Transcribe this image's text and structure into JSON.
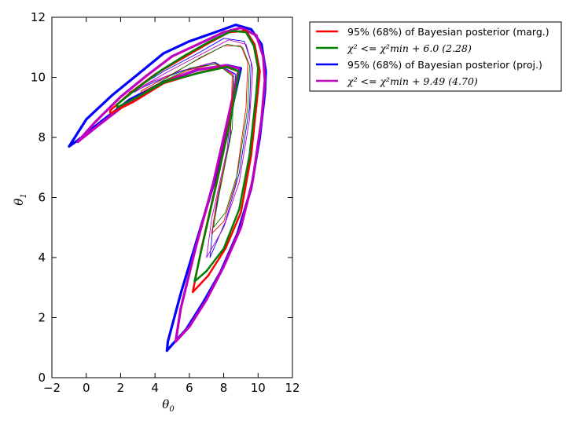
{
  "chart_data": {
    "type": "contour",
    "xlabel": "θ",
    "xlabel_sub": "0",
    "ylabel": "θ",
    "ylabel_sub": "1",
    "xlim": [
      -2,
      12
    ],
    "ylim": [
      0,
      12
    ],
    "xticks": [
      -2,
      0,
      2,
      4,
      6,
      8,
      10,
      12
    ],
    "yticks": [
      0,
      2,
      4,
      6,
      8,
      10,
      12
    ],
    "xtick_labels": [
      "−2",
      "0",
      "2",
      "4",
      "6",
      "8",
      "10",
      "12"
    ],
    "ytick_labels": [
      "0",
      "2",
      "4",
      "6",
      "8",
      "10",
      "12"
    ],
    "grid": false,
    "legend_position": "outside-right-top",
    "legend": [
      {
        "label": "95% (68%) of Bayesian posterior (marg.)",
        "color": "#ff0000"
      },
      {
        "label": "χ² <= χ²min + 6.0 (2.28)",
        "color": "#007f00"
      },
      {
        "label": "95% (68%) of Bayesian posterior (proj.)",
        "color": "#0000ff"
      },
      {
        "label": "χ² <= χ²min + 9.49 (4.70)",
        "color": "#bf00bf"
      }
    ],
    "series": [
      {
        "name": "95% (68%) of Bayesian posterior (marg.)",
        "color": "#ff0000",
        "outer": [
          [
            1.4,
            8.9
          ],
          [
            2.6,
            9.5
          ],
          [
            4,
            10.1
          ],
          [
            5.5,
            10.6
          ],
          [
            7,
            11.1
          ],
          [
            8.3,
            11.5
          ],
          [
            9.3,
            11.55
          ],
          [
            9.8,
            11.1
          ],
          [
            10.1,
            10.2
          ],
          [
            10.0,
            9.6
          ],
          [
            9.6,
            7.4
          ],
          [
            9.0,
            5.5
          ],
          [
            8.1,
            4.3
          ],
          [
            7.1,
            3.4
          ],
          [
            6.2,
            2.85
          ],
          [
            6.7,
            4.3
          ],
          [
            7.5,
            6.3
          ],
          [
            8.3,
            8.4
          ],
          [
            8.9,
            10.2
          ],
          [
            8.1,
            10.35
          ],
          [
            6.5,
            10.15
          ],
          [
            4.5,
            9.8
          ],
          [
            2.8,
            9.2
          ],
          [
            1.4,
            8.8
          ]
        ],
        "inner": [
          [
            3.2,
            9.55
          ],
          [
            4.8,
            10.05
          ],
          [
            6.5,
            10.6
          ],
          [
            8.0,
            11.05
          ],
          [
            9.0,
            11.05
          ],
          [
            9.4,
            10.5
          ],
          [
            9.3,
            9.0
          ],
          [
            8.7,
            6.5
          ],
          [
            8.0,
            5.2
          ],
          [
            7.3,
            4.8
          ],
          [
            7.6,
            5.9
          ],
          [
            8.4,
            8.0
          ],
          [
            8.5,
            10.1
          ],
          [
            7.5,
            10.45
          ],
          [
            6.0,
            10.25
          ],
          [
            4.5,
            9.85
          ],
          [
            3.2,
            9.5
          ]
        ]
      },
      {
        "name": "χ² <= χ²min + 6.0 (2.28)",
        "color": "#007f00",
        "outer": [
          [
            1.8,
            9.1
          ],
          [
            3,
            9.65
          ],
          [
            4.4,
            10.25
          ],
          [
            5.8,
            10.75
          ],
          [
            7.2,
            11.2
          ],
          [
            8.5,
            11.55
          ],
          [
            9.3,
            11.5
          ],
          [
            9.75,
            11.05
          ],
          [
            10.0,
            10.3
          ],
          [
            9.9,
            9.5
          ],
          [
            9.5,
            7.4
          ],
          [
            8.9,
            5.6
          ],
          [
            8.0,
            4.3
          ],
          [
            7.0,
            3.55
          ],
          [
            6.3,
            3.2
          ],
          [
            6.8,
            4.5
          ],
          [
            7.6,
            6.5
          ],
          [
            8.4,
            8.6
          ],
          [
            8.9,
            10.2
          ],
          [
            8.2,
            10.35
          ],
          [
            6.6,
            10.15
          ],
          [
            4.6,
            9.85
          ],
          [
            3.0,
            9.35
          ],
          [
            1.8,
            9.0
          ]
        ],
        "inner": [
          [
            3.4,
            9.5
          ],
          [
            5,
            10.1
          ],
          [
            6.6,
            10.65
          ],
          [
            8.2,
            11.1
          ],
          [
            9.1,
            11.0
          ],
          [
            9.5,
            10.4
          ],
          [
            9.4,
            9.0
          ],
          [
            8.8,
            6.8
          ],
          [
            8.1,
            5.5
          ],
          [
            7.4,
            5.0
          ],
          [
            7.7,
            6.0
          ],
          [
            8.5,
            8.3
          ],
          [
            8.6,
            10.0
          ],
          [
            7.6,
            10.45
          ],
          [
            6.0,
            10.3
          ],
          [
            4.6,
            9.9
          ],
          [
            3.4,
            9.45
          ]
        ]
      },
      {
        "name": "95% (68%) of Bayesian posterior (proj.)",
        "color": "#0000ff",
        "outer": [
          [
            -1.0,
            7.7
          ],
          [
            0,
            8.6
          ],
          [
            1.5,
            9.4
          ],
          [
            3,
            10.1
          ],
          [
            4.5,
            10.8
          ],
          [
            6,
            11.2
          ],
          [
            7.5,
            11.5
          ],
          [
            8.7,
            11.75
          ],
          [
            9.6,
            11.6
          ],
          [
            10.2,
            11.1
          ],
          [
            10.45,
            10.2
          ],
          [
            10.4,
            9.5
          ],
          [
            10.1,
            8.0
          ],
          [
            9.6,
            6.3
          ],
          [
            8.8,
            4.8
          ],
          [
            7.8,
            3.5
          ],
          [
            6.8,
            2.5
          ],
          [
            5.8,
            1.6
          ],
          [
            5.0,
            1.1
          ],
          [
            4.7,
            0.9
          ],
          [
            4.75,
            1.2
          ],
          [
            5.5,
            2.8
          ],
          [
            6.5,
            4.7
          ],
          [
            7.5,
            6.6
          ],
          [
            8.3,
            8.5
          ],
          [
            9.0,
            10.3
          ],
          [
            8.2,
            10.4
          ],
          [
            6.5,
            10.25
          ],
          [
            4.5,
            9.85
          ],
          [
            2.5,
            9.25
          ],
          [
            0.8,
            8.5
          ],
          [
            -0.5,
            7.9
          ],
          [
            -1.0,
            7.7
          ]
        ],
        "inner": [
          [
            2.5,
            9.5
          ],
          [
            4.5,
            10.2
          ],
          [
            6.5,
            10.8
          ],
          [
            8.0,
            11.3
          ],
          [
            9.2,
            11.2
          ],
          [
            9.6,
            10.5
          ],
          [
            9.5,
            9.0
          ],
          [
            8.9,
            6.8
          ],
          [
            8.1,
            5.2
          ],
          [
            7.2,
            4.0
          ],
          [
            7.4,
            5.2
          ],
          [
            8.3,
            7.8
          ],
          [
            8.7,
            10.1
          ],
          [
            7.5,
            10.5
          ],
          [
            5.5,
            10.2
          ],
          [
            3.8,
            9.8
          ],
          [
            2.5,
            9.45
          ]
        ]
      },
      {
        "name": "χ² <= χ²min + 9.49 (4.70)",
        "color": "#bf00bf",
        "outer": [
          [
            -0.5,
            7.85
          ],
          [
            0.5,
            8.5
          ],
          [
            2,
            9.35
          ],
          [
            3.5,
            10.05
          ],
          [
            5,
            10.7
          ],
          [
            6.5,
            11.1
          ],
          [
            8,
            11.5
          ],
          [
            9,
            11.65
          ],
          [
            9.9,
            11.4
          ],
          [
            10.3,
            10.7
          ],
          [
            10.4,
            9.9
          ],
          [
            10.2,
            8.6
          ],
          [
            9.7,
            6.6
          ],
          [
            9.0,
            5.0
          ],
          [
            8.0,
            3.7
          ],
          [
            7.0,
            2.6
          ],
          [
            6.0,
            1.7
          ],
          [
            5.2,
            1.2
          ],
          [
            5.5,
            2.3
          ],
          [
            6.4,
            4.4
          ],
          [
            7.4,
            6.5
          ],
          [
            8.2,
            8.5
          ],
          [
            8.9,
            10.3
          ],
          [
            8.1,
            10.4
          ],
          [
            6.4,
            10.25
          ],
          [
            4.4,
            9.8
          ],
          [
            2.4,
            9.15
          ],
          [
            0.6,
            8.35
          ],
          [
            -0.5,
            7.85
          ]
        ],
        "inner": [
          [
            2.8,
            9.55
          ],
          [
            4.8,
            10.2
          ],
          [
            6.8,
            10.8
          ],
          [
            8.3,
            11.25
          ],
          [
            9.3,
            11.1
          ],
          [
            9.7,
            10.3
          ],
          [
            9.5,
            8.6
          ],
          [
            8.9,
            6.5
          ],
          [
            8.0,
            5.0
          ],
          [
            7.0,
            4.0
          ],
          [
            7.3,
            5.3
          ],
          [
            8.2,
            7.6
          ],
          [
            8.6,
            10.1
          ],
          [
            7.4,
            10.5
          ],
          [
            5.4,
            10.2
          ],
          [
            3.8,
            9.85
          ],
          [
            2.8,
            9.5
          ]
        ]
      }
    ]
  }
}
